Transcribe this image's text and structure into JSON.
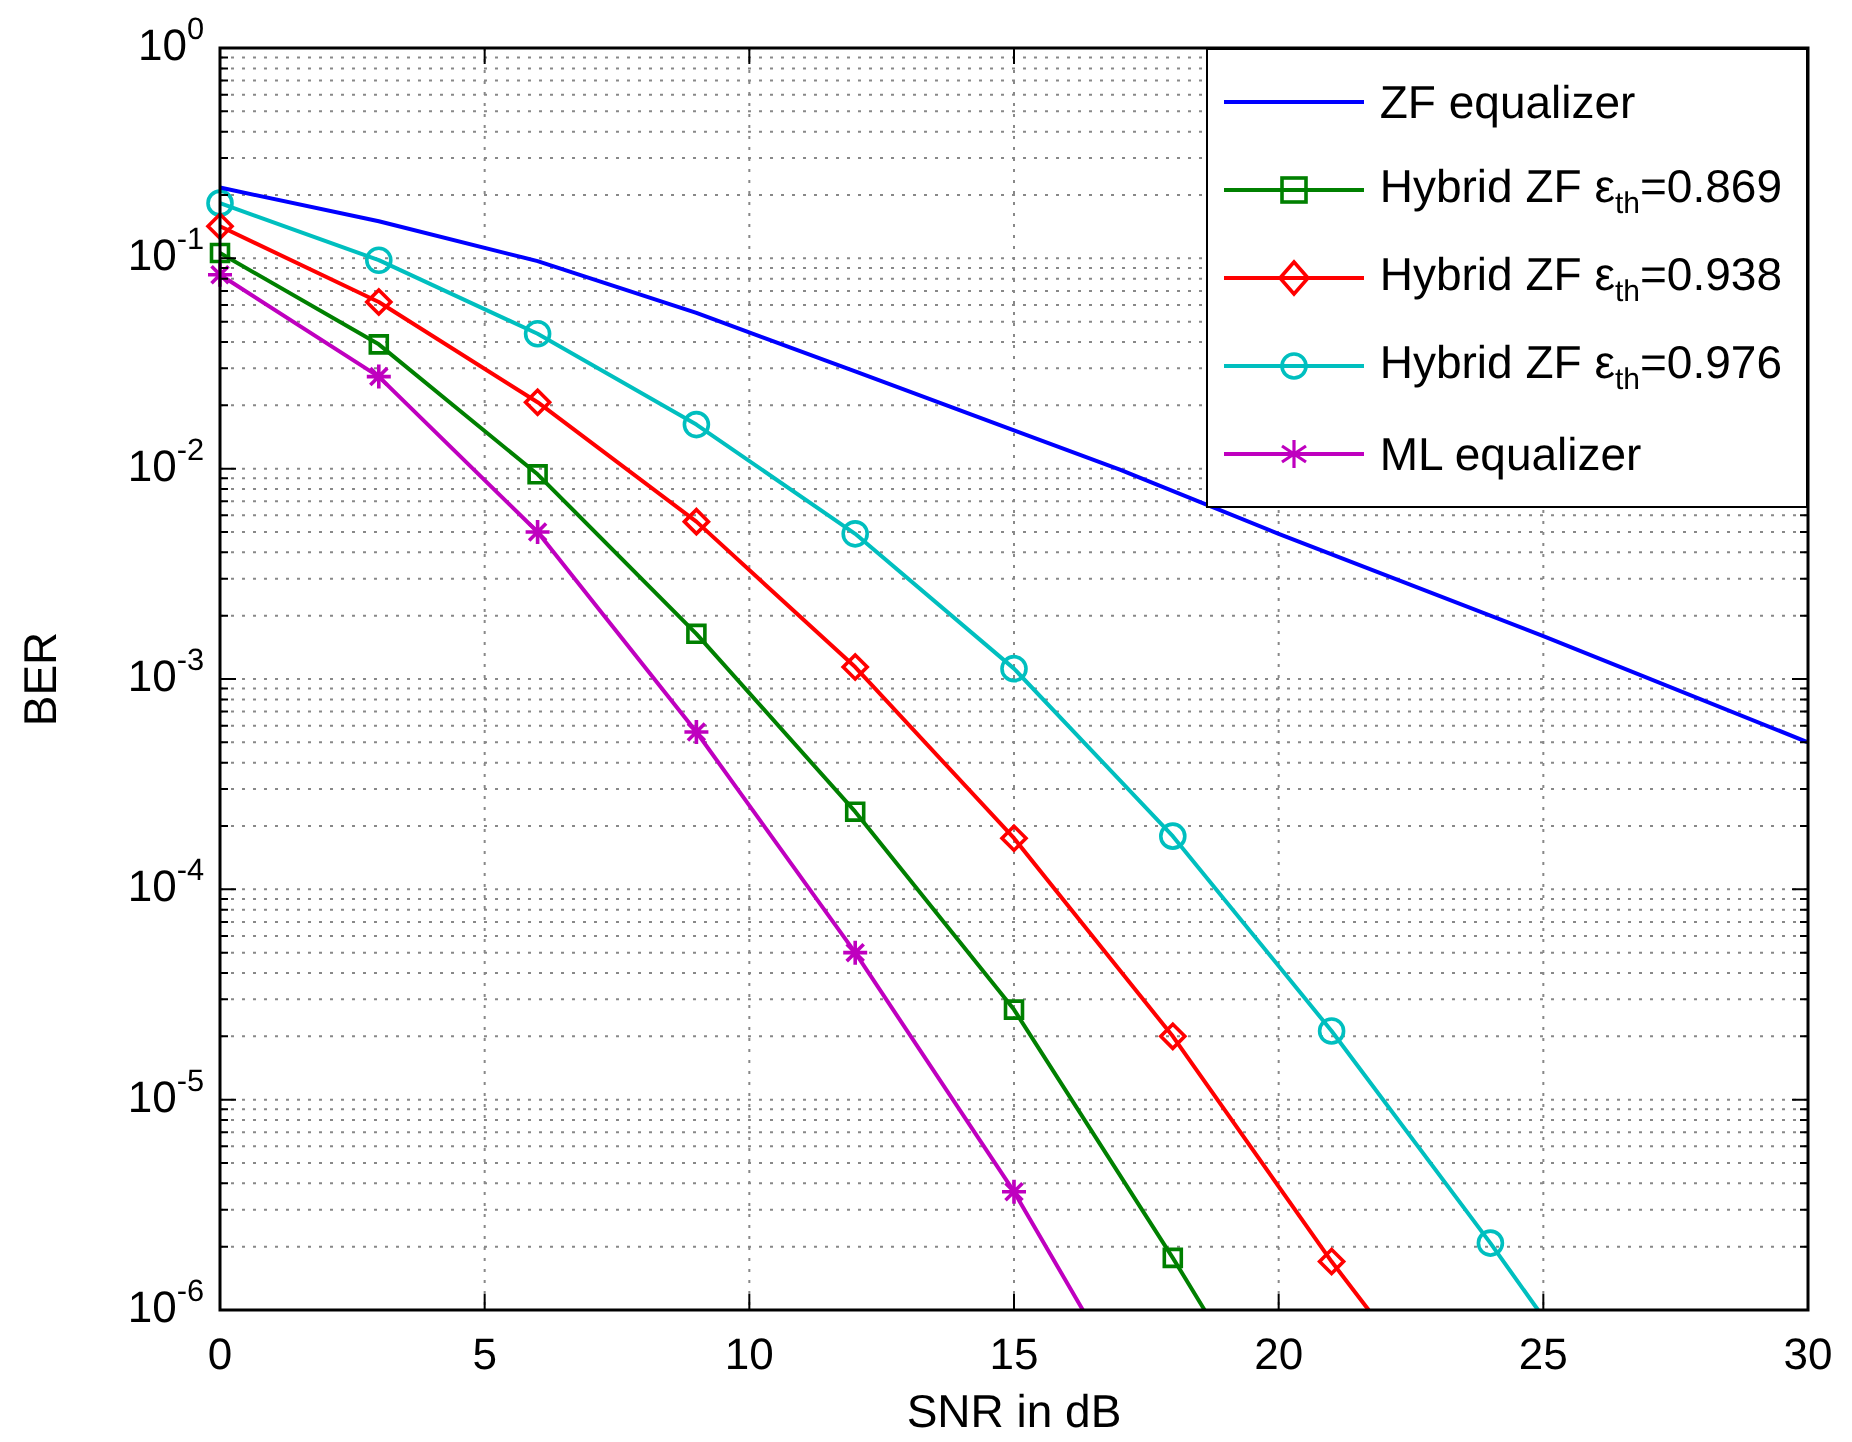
{
  "chart_data": {
    "type": "line",
    "xlabel": "SNR in dB",
    "ylabel": "BER",
    "log": "y",
    "grid": true,
    "legend": "top right",
    "line_style": "solid",
    "xlim": [
      0,
      30
    ],
    "xticks": [
      0,
      5,
      10,
      15,
      20,
      25,
      30
    ],
    "ylim": [
      1e-06,
      1
    ],
    "yticks": [
      {
        "value": 1,
        "label": "10$^{0}$"
      },
      {
        "value": 0.1,
        "label": "10$^{-1}$"
      },
      {
        "value": 0.01,
        "label": "10$^{-2}$"
      },
      {
        "value": 0.001,
        "label": "10$^{-3}$"
      },
      {
        "value": 0.0001,
        "label": "10$^{-4}$"
      },
      {
        "value": 1e-05,
        "label": "10$^{-5}$"
      },
      {
        "value": 1e-06,
        "label": "10$^{-6}$"
      }
    ],
    "series": [
      {
        "name": "ZF equalizer",
        "color": "#0000ff",
        "marker": "none",
        "x": [
          0,
          3,
          6,
          9,
          12,
          15,
          17,
          20,
          25,
          30
        ],
        "values": [
          0.217,
          0.15,
          0.097,
          0.055,
          0.029,
          0.0152,
          0.0099,
          0.0049,
          0.0016,
          0.0005
        ]
      },
      {
        "name": "Hybrid ZF ε$_{th}$=0.869",
        "color": "#008000",
        "marker": "square",
        "x": [
          0,
          3,
          6,
          9,
          12,
          15,
          18,
          18.6
        ],
        "values": [
          0.106,
          0.039,
          0.0094,
          0.00164,
          0.000234,
          2.68e-05,
          1.77e-06,
          1e-06
        ]
      },
      {
        "name": "Hybrid ZF ε$_{th}$=0.938",
        "color": "#ff0000",
        "marker": "diamond",
        "x": [
          0,
          3,
          6,
          9,
          12,
          15,
          18,
          21,
          21.7
        ],
        "values": [
          0.142,
          0.062,
          0.0207,
          0.0056,
          0.00114,
          0.000175,
          2e-05,
          1.7e-06,
          1e-06
        ]
      },
      {
        "name": "Hybrid ZF ε$_{th}$=0.976",
        "color": "#00bfbf",
        "marker": "circle",
        "x": [
          0,
          3,
          6,
          9,
          12,
          15,
          18,
          21,
          24,
          24.9
        ],
        "values": [
          0.183,
          0.098,
          0.0438,
          0.0162,
          0.0049,
          0.00112,
          0.000179,
          2.12e-05,
          2.08e-06,
          1e-06
        ]
      },
      {
        "name": "ML equalizer",
        "color": "#bf00bf",
        "marker": "cross",
        "x": [
          0,
          3,
          6,
          9,
          12,
          15,
          16.3
        ],
        "values": [
          0.0835,
          0.0274,
          0.005,
          0.00056,
          5e-05,
          3.65e-06,
          1e-06
        ]
      }
    ]
  }
}
